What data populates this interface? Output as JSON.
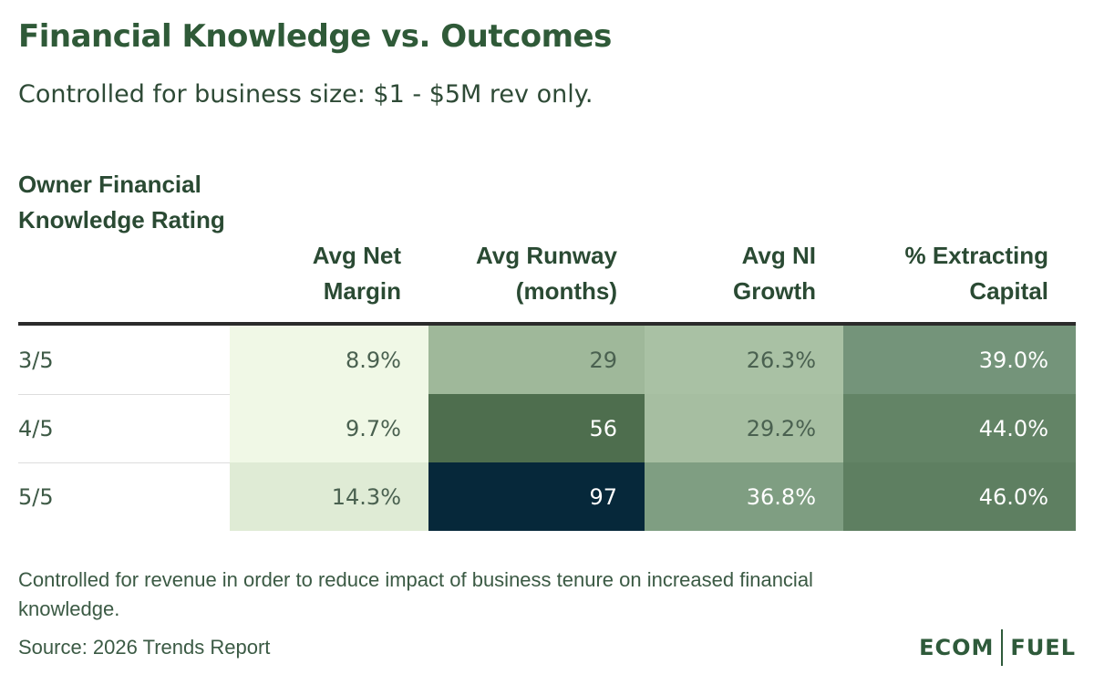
{
  "title": "Financial Knowledge vs. Outcomes",
  "subtitle": "Controlled for business size: $1 - $5M rev only.",
  "chart_data": {
    "type": "table",
    "row_header_label": "Owner Financial Knowledge Rating",
    "columns": [
      "Avg Net Margin",
      "Avg Runway (months)",
      "Avg NI Growth",
      "% Extracting Capital"
    ],
    "rows": [
      {
        "label": "3/5",
        "values": [
          "8.9%",
          "29",
          "26.3%",
          "39.0%"
        ],
        "colors": [
          "#f0f8e6",
          "#9fb89a",
          "#a9c1a4",
          "#74947a"
        ]
      },
      {
        "label": "4/5",
        "values": [
          "9.7%",
          "56",
          "29.2%",
          "44.0%"
        ],
        "colors": [
          "#f0f8e6",
          "#4e6e4e",
          "#a6bea1",
          "#638466"
        ]
      },
      {
        "label": "5/5",
        "values": [
          "14.3%",
          "97",
          "36.8%",
          "46.0%"
        ],
        "colors": [
          "#dfebd5",
          "#06283a",
          "#7f9e82",
          "#5e7f61"
        ]
      }
    ],
    "heatmap": true
  },
  "footnote": "Controlled for revenue in order to reduce impact of business tenure on increased financial knowledge.",
  "source": "Source: 2026 Trends Report",
  "logo": {
    "left": "ECOM",
    "right": "FUEL"
  },
  "colors": {
    "title": "#2f5a38",
    "light_text": "#3e5a46",
    "dark_text_on_light": "#4a6150",
    "light_text_on_dark": "#ffffff"
  }
}
